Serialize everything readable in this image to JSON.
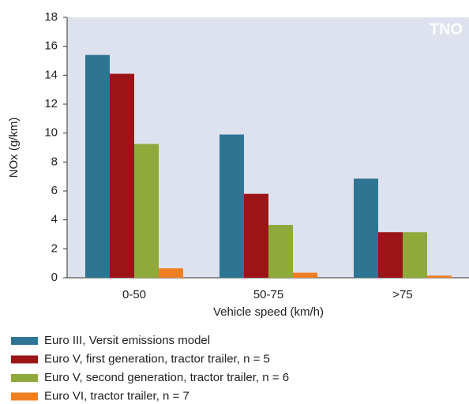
{
  "chart_data": {
    "type": "bar",
    "y_label": "NOx (g/km)",
    "x_label": "Vehicle speed (km/h)",
    "watermark": "TNO",
    "categories": [
      "0-50",
      "50-75",
      ">75"
    ],
    "series": [
      {
        "name": "Euro III, Versit emissions model",
        "color": "#2e7594",
        "values": [
          15.4,
          9.9,
          6.85
        ]
      },
      {
        "name": "Euro V, first generation, tractor trailer, n = 5",
        "color": "#9b1516",
        "values": [
          14.1,
          5.8,
          3.15
        ]
      },
      {
        "name": "Euro V, second generation, tractor trailer, n = 6",
        "color": "#8fa93a",
        "values": [
          9.25,
          3.65,
          3.15
        ]
      },
      {
        "name": "Euro VI, tractor trailer, n = 7",
        "color": "#f07f22",
        "values": [
          0.65,
          0.35,
          0.15
        ]
      }
    ],
    "ylim": [
      0,
      18
    ],
    "yticks": [
      0,
      2,
      4,
      6,
      8,
      10,
      12,
      14,
      16,
      18
    ],
    "grid": false
  }
}
